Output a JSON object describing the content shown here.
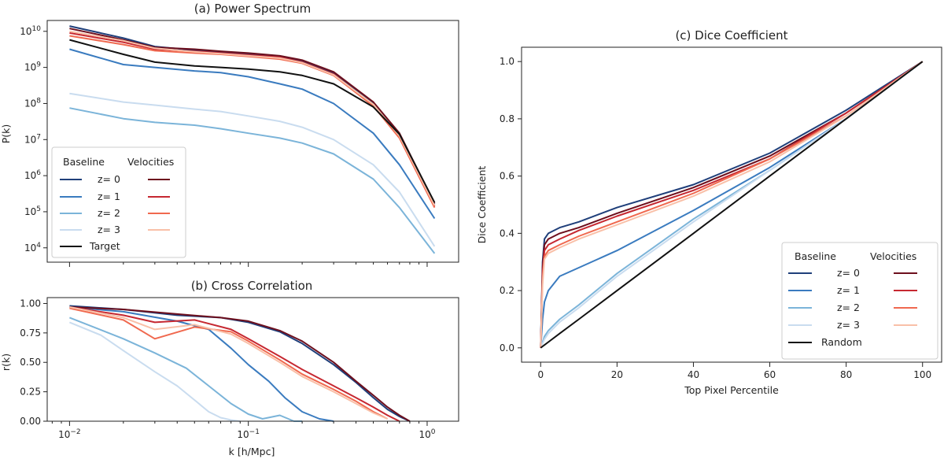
{
  "colors": {
    "baseline": [
      "#1f3f7a",
      "#3a7bbf",
      "#7bb4d9",
      "#c9dcef"
    ],
    "velocities": [
      "#6d0f1d",
      "#c62831",
      "#f0694f",
      "#f9c0a8"
    ],
    "target": "#111111"
  },
  "chart_data": [
    {
      "id": "power",
      "type": "line",
      "title": "(a) Power Spectrum",
      "xlabel": "",
      "ylabel": "P(k)",
      "xscale": "log",
      "yscale": "log",
      "xlim": [
        0.0075,
        1.5
      ],
      "ylim": [
        4000,
        20000000000
      ],
      "yticks": [
        {
          "value": 10000,
          "base": "10",
          "exp": "4"
        },
        {
          "value": 100000,
          "base": "10",
          "exp": "5"
        },
        {
          "value": 1000000,
          "base": "10",
          "exp": "6"
        },
        {
          "value": 10000000,
          "base": "10",
          "exp": "7"
        },
        {
          "value": 100000000,
          "base": "10",
          "exp": "8"
        },
        {
          "value": 1000000000,
          "base": "10",
          "exp": "9"
        },
        {
          "value": 10000000000,
          "base": "10",
          "exp": "10"
        }
      ],
      "x": [
        0.01,
        0.02,
        0.03,
        0.05,
        0.07,
        0.1,
        0.15,
        0.2,
        0.3,
        0.5,
        0.7,
        1.1
      ],
      "series": [
        {
          "name": "Baseline z= 0",
          "group": "baseline",
          "idx": 0,
          "values": [
            14000000000,
            6500000000,
            3800000000,
            3000000000,
            2700000000,
            2400000000,
            2000000000,
            1500000000,
            700000000,
            100000000,
            14000000,
            160000
          ]
        },
        {
          "name": "Baseline z= 1",
          "group": "baseline",
          "idx": 1,
          "values": [
            3200000000,
            1200000000,
            1000000000,
            800000000,
            720000000,
            550000000,
            350000000,
            250000000,
            100000000,
            15000000,
            2000000,
            65000
          ]
        },
        {
          "name": "Baseline z= 2",
          "group": "baseline",
          "idx": 2,
          "values": [
            75000000,
            38000000,
            30000000,
            25000000,
            20000000,
            15000000,
            11000000,
            8000000,
            4000000,
            800000,
            130000,
            7000
          ]
        },
        {
          "name": "Baseline z= 3",
          "group": "baseline",
          "idx": 3,
          "values": [
            190000000,
            110000000,
            90000000,
            70000000,
            60000000,
            45000000,
            32000000,
            22000000,
            10000000,
            2000000,
            350000,
            11000
          ]
        },
        {
          "name": "Velocities z= 0",
          "group": "velocities",
          "idx": 0,
          "values": [
            12000000000,
            5800000000,
            3600000000,
            3200000000,
            2800000000,
            2500000000,
            2100000000,
            1600000000,
            750000000,
            110000000,
            15000000,
            170000
          ]
        },
        {
          "name": "Velocities z= 1",
          "group": "velocities",
          "idx": 1,
          "values": [
            9000000000,
            5000000000,
            3200000000,
            2800000000,
            2500000000,
            2200000000,
            1900000000,
            1400000000,
            650000000,
            90000000,
            12000000,
            140000
          ]
        },
        {
          "name": "Velocities z= 2",
          "group": "velocities",
          "idx": 2,
          "values": [
            7500000000,
            4300000000,
            2900000000,
            2500000000,
            2300000000,
            2000000000,
            1700000000,
            1300000000,
            600000000,
            85000000,
            11000000,
            130000
          ]
        },
        {
          "name": "Velocities z= 3",
          "group": "velocities",
          "idx": 3,
          "values": [
            10000000000,
            5500000000,
            3400000000,
            2700000000,
            2400000000,
            2100000000,
            1800000000,
            1350000000,
            620000000,
            95000000,
            12500000,
            150000
          ]
        },
        {
          "name": "Target",
          "group": "target",
          "idx": 0,
          "values": [
            5800000000,
            2300000000,
            1400000000,
            1100000000,
            1000000000,
            900000000,
            750000000,
            600000000,
            350000000,
            80000000,
            14000000,
            180000
          ]
        }
      ],
      "legend": {
        "position": "lower-left",
        "baseline_header": "Baseline",
        "velocities_header": "Velocities",
        "rows": [
          "z= 0",
          "z= 1",
          "z= 2",
          "z= 3"
        ],
        "target_label": "Target"
      }
    },
    {
      "id": "cross",
      "type": "line",
      "title": "(b) Cross Correlation",
      "xlabel": "k [h/Mpc]",
      "ylabel": "r(k)",
      "xscale": "log",
      "yscale": "linear",
      "xlim": [
        0.0075,
        1.5
      ],
      "ylim": [
        0,
        1.05
      ],
      "xticks": [
        {
          "value": 0.01,
          "base": "10",
          "exp": "−2"
        },
        {
          "value": 0.1,
          "base": "10",
          "exp": "−1"
        },
        {
          "value": 1,
          "base": "10",
          "exp": "0"
        }
      ],
      "yticks": [
        {
          "value": 0,
          "label": "0.00"
        },
        {
          "value": 0.25,
          "label": "0.25"
        },
        {
          "value": 0.5,
          "label": "0.50"
        },
        {
          "value": 0.75,
          "label": "0.75"
        },
        {
          "value": 1.0,
          "label": "1.00"
        }
      ],
      "series": [
        {
          "name": "Baseline z= 0",
          "group": "baseline",
          "idx": 0,
          "x": [
            0.01,
            0.02,
            0.04,
            0.07,
            0.1,
            0.15,
            0.2,
            0.3,
            0.4,
            0.5,
            0.6,
            0.7,
            0.8
          ],
          "values": [
            0.98,
            0.95,
            0.9,
            0.88,
            0.84,
            0.76,
            0.66,
            0.48,
            0.33,
            0.2,
            0.1,
            0.04,
            0.0
          ]
        },
        {
          "name": "Baseline z= 1",
          "group": "baseline",
          "idx": 1,
          "x": [
            0.01,
            0.02,
            0.04,
            0.06,
            0.08,
            0.1,
            0.13,
            0.16,
            0.2,
            0.25,
            0.3
          ],
          "values": [
            0.97,
            0.93,
            0.85,
            0.78,
            0.62,
            0.48,
            0.34,
            0.2,
            0.08,
            0.02,
            0.0
          ]
        },
        {
          "name": "Baseline z= 2",
          "group": "baseline",
          "idx": 2,
          "x": [
            0.01,
            0.02,
            0.03,
            0.045,
            0.06,
            0.08,
            0.1,
            0.12,
            0.15,
            0.18,
            0.2
          ],
          "values": [
            0.88,
            0.7,
            0.58,
            0.45,
            0.3,
            0.15,
            0.06,
            0.02,
            0.05,
            0.0,
            0.0
          ]
        },
        {
          "name": "Baseline z= 3",
          "group": "baseline",
          "idx": 3,
          "x": [
            0.01,
            0.015,
            0.02,
            0.03,
            0.04,
            0.05,
            0.06,
            0.07,
            0.08,
            0.09
          ],
          "values": [
            0.84,
            0.73,
            0.6,
            0.42,
            0.3,
            0.18,
            0.08,
            0.03,
            0.01,
            0.0
          ]
        },
        {
          "name": "Velocities z= 0",
          "group": "velocities",
          "idx": 0,
          "x": [
            0.01,
            0.02,
            0.04,
            0.07,
            0.1,
            0.15,
            0.2,
            0.3,
            0.4,
            0.5,
            0.6,
            0.7,
            0.8
          ],
          "values": [
            0.97,
            0.95,
            0.91,
            0.88,
            0.85,
            0.77,
            0.68,
            0.5,
            0.34,
            0.22,
            0.12,
            0.05,
            0.0
          ]
        },
        {
          "name": "Velocities z= 1",
          "group": "velocities",
          "idx": 1,
          "x": [
            0.01,
            0.02,
            0.03,
            0.05,
            0.08,
            0.1,
            0.15,
            0.2,
            0.3,
            0.4,
            0.5,
            0.6,
            0.7
          ],
          "values": [
            0.97,
            0.9,
            0.84,
            0.86,
            0.78,
            0.7,
            0.55,
            0.44,
            0.3,
            0.2,
            0.12,
            0.05,
            0.0
          ]
        },
        {
          "name": "Velocities z= 2",
          "group": "velocities",
          "idx": 2,
          "x": [
            0.01,
            0.02,
            0.03,
            0.05,
            0.08,
            0.1,
            0.15,
            0.2,
            0.3,
            0.4,
            0.5,
            0.6
          ],
          "values": [
            0.96,
            0.86,
            0.7,
            0.8,
            0.76,
            0.68,
            0.52,
            0.4,
            0.27,
            0.17,
            0.08,
            0.02
          ]
        },
        {
          "name": "Velocities z= 3",
          "group": "velocities",
          "idx": 3,
          "x": [
            0.01,
            0.02,
            0.03,
            0.05,
            0.08,
            0.1,
            0.15,
            0.2,
            0.3,
            0.4,
            0.5,
            0.6
          ],
          "values": [
            0.97,
            0.88,
            0.78,
            0.82,
            0.74,
            0.66,
            0.5,
            0.38,
            0.25,
            0.15,
            0.07,
            0.02
          ]
        }
      ]
    },
    {
      "id": "dice",
      "type": "line",
      "title": "(c) Dice Coefficient",
      "xlabel": "Top Pixel Percentile",
      "ylabel": "Dice Coefficient",
      "xscale": "linear",
      "yscale": "linear",
      "xlim": [
        -5,
        105
      ],
      "ylim": [
        -0.05,
        1.05
      ],
      "xticks": [
        {
          "value": 0,
          "label": "0"
        },
        {
          "value": 20,
          "label": "20"
        },
        {
          "value": 40,
          "label": "40"
        },
        {
          "value": 60,
          "label": "60"
        },
        {
          "value": 80,
          "label": "80"
        },
        {
          "value": 100,
          "label": "100"
        }
      ],
      "yticks": [
        {
          "value": 0,
          "label": "0.0"
        },
        {
          "value": 0.2,
          "label": "0.2"
        },
        {
          "value": 0.4,
          "label": "0.4"
        },
        {
          "value": 0.6,
          "label": "0.6"
        },
        {
          "value": 0.8,
          "label": "0.8"
        },
        {
          "value": 1.0,
          "label": "1.0"
        }
      ],
      "x": [
        0,
        0.5,
        1,
        2,
        5,
        10,
        20,
        40,
        60,
        80,
        100
      ],
      "series": [
        {
          "name": "Baseline z= 0",
          "group": "baseline",
          "idx": 0,
          "values": [
            0.0,
            0.3,
            0.38,
            0.4,
            0.42,
            0.44,
            0.49,
            0.57,
            0.68,
            0.83,
            1.0
          ]
        },
        {
          "name": "Baseline z= 1",
          "group": "baseline",
          "idx": 1,
          "values": [
            0.0,
            0.1,
            0.16,
            0.2,
            0.25,
            0.28,
            0.34,
            0.48,
            0.63,
            0.8,
            1.0
          ]
        },
        {
          "name": "Baseline z= 2",
          "group": "baseline",
          "idx": 2,
          "values": [
            0.0,
            0.02,
            0.04,
            0.06,
            0.1,
            0.15,
            0.26,
            0.45,
            0.62,
            0.8,
            1.0
          ]
        },
        {
          "name": "Baseline z= 3",
          "group": "baseline",
          "idx": 3,
          "values": [
            0.0,
            0.015,
            0.03,
            0.05,
            0.09,
            0.14,
            0.25,
            0.44,
            0.62,
            0.8,
            1.0
          ]
        },
        {
          "name": "Velocities z= 0",
          "group": "velocities",
          "idx": 0,
          "values": [
            0.0,
            0.28,
            0.36,
            0.38,
            0.4,
            0.42,
            0.47,
            0.56,
            0.67,
            0.82,
            1.0
          ]
        },
        {
          "name": "Velocities z= 1",
          "group": "velocities",
          "idx": 1,
          "values": [
            0.0,
            0.26,
            0.34,
            0.36,
            0.38,
            0.41,
            0.46,
            0.55,
            0.66,
            0.82,
            1.0
          ]
        },
        {
          "name": "Velocities z= 2",
          "group": "velocities",
          "idx": 2,
          "values": [
            0.0,
            0.24,
            0.32,
            0.34,
            0.36,
            0.39,
            0.44,
            0.54,
            0.66,
            0.81,
            1.0
          ]
        },
        {
          "name": "Velocities z= 3",
          "group": "velocities",
          "idx": 3,
          "values": [
            0.0,
            0.22,
            0.31,
            0.33,
            0.35,
            0.38,
            0.43,
            0.53,
            0.65,
            0.81,
            1.0
          ]
        },
        {
          "name": "Random",
          "group": "target",
          "idx": 0,
          "values": [
            0.0,
            0.005,
            0.01,
            0.02,
            0.05,
            0.1,
            0.2,
            0.4,
            0.6,
            0.8,
            1.0
          ]
        }
      ],
      "legend": {
        "position": "lower-right",
        "baseline_header": "Baseline",
        "velocities_header": "Velocities",
        "rows": [
          "z= 0",
          "z= 1",
          "z= 2",
          "z= 3"
        ],
        "target_label": "Random"
      }
    }
  ]
}
